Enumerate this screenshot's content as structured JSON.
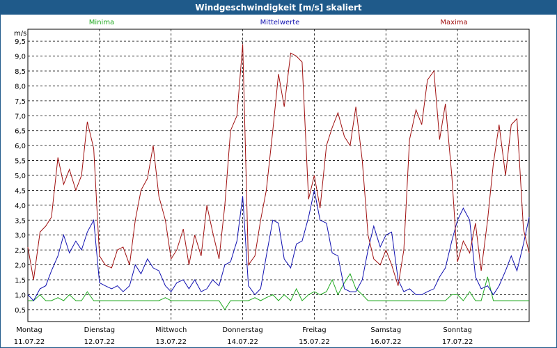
{
  "chart_data": {
    "type": "line",
    "title": "Windgeschwindigkeit [m/s] skaliert",
    "ylabel": "m/s",
    "ylim": [
      0.1,
      9.9
    ],
    "yticks": [
      "0,5",
      "1,0",
      "1,5",
      "2,0",
      "2,5",
      "3,0",
      "3,5",
      "4,0",
      "4,5",
      "5,0",
      "5,5",
      "6,0",
      "6,5",
      "7,0",
      "7,5",
      "8,0",
      "8,5",
      "9,0",
      "9,5"
    ],
    "ytick_values": [
      0.5,
      1.0,
      1.5,
      2.0,
      2.5,
      3.0,
      3.5,
      4.0,
      4.5,
      5.0,
      5.5,
      6.0,
      6.5,
      7.0,
      7.5,
      8.0,
      8.5,
      9.0,
      9.5
    ],
    "xlim": [
      0,
      7
    ],
    "days": [
      {
        "weekday": "Montag",
        "date": "11.07.22",
        "x": 0
      },
      {
        "weekday": "Dienstag",
        "date": "12.07.22",
        "x": 1
      },
      {
        "weekday": "Mittwoch",
        "date": "13.07.22",
        "x": 2
      },
      {
        "weekday": "Donnerstag",
        "date": "14.07.22",
        "x": 3
      },
      {
        "weekday": "Freitag",
        "date": "15.07.22",
        "x": 4
      },
      {
        "weekday": "Samstag",
        "date": "16.07.22",
        "x": 5
      },
      {
        "weekday": "Sonntag",
        "date": "17.07.22",
        "x": 6
      }
    ],
    "grid": true,
    "series": [
      {
        "name": "Minima",
        "color": "#22aa22",
        "x": [
          0.0,
          0.08,
          0.17,
          0.25,
          0.33,
          0.42,
          0.5,
          0.58,
          0.67,
          0.75,
          0.83,
          0.92,
          1.0,
          1.08,
          1.17,
          1.25,
          1.33,
          1.42,
          1.5,
          1.58,
          1.67,
          1.75,
          1.83,
          1.92,
          2.0,
          2.08,
          2.17,
          2.25,
          2.33,
          2.42,
          2.5,
          2.58,
          2.67,
          2.75,
          2.83,
          2.92,
          3.0,
          3.08,
          3.17,
          3.25,
          3.33,
          3.42,
          3.5,
          3.58,
          3.67,
          3.75,
          3.83,
          3.92,
          4.0,
          4.08,
          4.17,
          4.25,
          4.33,
          4.42,
          4.5,
          4.58,
          4.67,
          4.75,
          4.83,
          4.92,
          5.0,
          5.08,
          5.17,
          5.25,
          5.33,
          5.42,
          5.5,
          5.58,
          5.67,
          5.75,
          5.83,
          5.92,
          6.0,
          6.08,
          6.17,
          6.25,
          6.33,
          6.42,
          6.5,
          6.58,
          6.67,
          6.75,
          6.83,
          6.92,
          7.0
        ],
        "values": [
          0.8,
          0.8,
          1.0,
          0.8,
          0.8,
          0.9,
          0.8,
          1.0,
          0.8,
          0.8,
          1.1,
          0.8,
          0.8,
          0.8,
          0.8,
          0.8,
          0.8,
          0.8,
          0.8,
          0.8,
          0.8,
          0.8,
          0.8,
          0.9,
          0.8,
          0.8,
          0.8,
          0.8,
          0.8,
          0.8,
          0.8,
          0.8,
          0.8,
          0.5,
          0.8,
          0.8,
          0.8,
          0.8,
          0.9,
          0.8,
          0.9,
          1.0,
          0.8,
          1.0,
          0.8,
          1.2,
          0.8,
          1.0,
          1.1,
          1.0,
          1.1,
          1.5,
          1.0,
          1.4,
          1.7,
          1.2,
          1.0,
          0.8,
          0.8,
          0.8,
          0.8,
          0.8,
          0.8,
          0.8,
          0.8,
          0.8,
          0.8,
          0.8,
          0.8,
          0.8,
          0.8,
          1.0,
          1.0,
          0.8,
          1.1,
          0.8,
          0.8,
          1.6,
          0.8,
          0.8,
          0.8,
          0.8,
          0.8,
          0.8,
          0.8
        ],
        "label_pos": "left"
      },
      {
        "name": "Mittelwerte",
        "color": "#1010b0",
        "x": [
          0.0,
          0.08,
          0.17,
          0.25,
          0.33,
          0.42,
          0.5,
          0.58,
          0.67,
          0.75,
          0.83,
          0.92,
          1.0,
          1.08,
          1.17,
          1.25,
          1.33,
          1.42,
          1.5,
          1.58,
          1.67,
          1.75,
          1.83,
          1.92,
          2.0,
          2.08,
          2.17,
          2.25,
          2.33,
          2.42,
          2.5,
          2.58,
          2.67,
          2.75,
          2.83,
          2.92,
          3.0,
          3.08,
          3.17,
          3.25,
          3.33,
          3.42,
          3.5,
          3.58,
          3.67,
          3.75,
          3.83,
          3.92,
          4.0,
          4.08,
          4.17,
          4.25,
          4.33,
          4.42,
          4.5,
          4.58,
          4.67,
          4.75,
          4.83,
          4.92,
          5.0,
          5.08,
          5.17,
          5.25,
          5.33,
          5.42,
          5.5,
          5.58,
          5.67,
          5.75,
          5.83,
          5.92,
          6.0,
          6.08,
          6.17,
          6.25,
          6.33,
          6.42,
          6.5,
          6.58,
          6.67,
          6.75,
          6.83,
          6.92,
          7.0
        ],
        "values": [
          1.0,
          0.8,
          1.2,
          1.3,
          1.8,
          2.3,
          3.0,
          2.4,
          2.8,
          2.5,
          3.1,
          3.5,
          1.4,
          1.3,
          1.2,
          1.3,
          1.1,
          1.3,
          2.0,
          1.7,
          2.2,
          1.9,
          1.8,
          1.3,
          1.1,
          1.4,
          1.5,
          1.2,
          1.5,
          1.1,
          1.2,
          1.5,
          1.3,
          2.0,
          2.1,
          2.8,
          4.3,
          1.3,
          1.0,
          1.2,
          2.3,
          3.5,
          3.4,
          2.2,
          1.9,
          2.7,
          2.8,
          3.6,
          4.5,
          3.5,
          3.4,
          2.4,
          2.3,
          1.2,
          1.1,
          1.1,
          1.5,
          2.5,
          3.3,
          2.6,
          3.0,
          3.1,
          1.5,
          1.1,
          1.2,
          1.0,
          1.0,
          1.1,
          1.2,
          1.6,
          1.9,
          2.8,
          3.5,
          3.9,
          3.5,
          1.6,
          1.2,
          1.3,
          1.0,
          1.3,
          1.8,
          2.3,
          1.8,
          2.7,
          3.6
        ],
        "label_pos": "center"
      },
      {
        "name": "Maxima",
        "color": "#a01010",
        "x": [
          0.0,
          0.08,
          0.17,
          0.25,
          0.33,
          0.42,
          0.5,
          0.58,
          0.67,
          0.75,
          0.83,
          0.92,
          1.0,
          1.08,
          1.17,
          1.25,
          1.33,
          1.42,
          1.5,
          1.58,
          1.67,
          1.75,
          1.83,
          1.92,
          2.0,
          2.08,
          2.17,
          2.25,
          2.33,
          2.42,
          2.5,
          2.58,
          2.67,
          2.75,
          2.83,
          2.92,
          3.0,
          3.08,
          3.17,
          3.25,
          3.33,
          3.42,
          3.5,
          3.58,
          3.67,
          3.75,
          3.83,
          3.92,
          4.0,
          4.08,
          4.17,
          4.25,
          4.33,
          4.42,
          4.5,
          4.58,
          4.67,
          4.75,
          4.83,
          4.92,
          5.0,
          5.08,
          5.17,
          5.25,
          5.33,
          5.42,
          5.5,
          5.58,
          5.67,
          5.75,
          5.83,
          5.92,
          6.0,
          6.08,
          6.17,
          6.25,
          6.33,
          6.42,
          6.5,
          6.58,
          6.67,
          6.75,
          6.83,
          6.92,
          7.0
        ],
        "values": [
          2.6,
          1.5,
          3.1,
          3.3,
          3.6,
          5.6,
          4.7,
          5.2,
          4.5,
          5.0,
          6.8,
          5.9,
          2.3,
          2.0,
          1.9,
          2.5,
          2.6,
          2.0,
          3.5,
          4.5,
          4.9,
          6.0,
          4.3,
          3.5,
          2.2,
          2.5,
          3.2,
          2.0,
          3.0,
          2.3,
          4.0,
          3.1,
          2.2,
          4.0,
          6.5,
          7.0,
          9.4,
          2.0,
          2.3,
          3.5,
          4.5,
          6.5,
          8.4,
          7.3,
          9.1,
          9.0,
          8.8,
          4.2,
          5.0,
          3.9,
          6.0,
          6.6,
          7.1,
          6.3,
          6.0,
          7.3,
          5.5,
          3.0,
          2.2,
          2.0,
          2.5,
          2.0,
          1.3,
          2.5,
          6.2,
          7.2,
          6.7,
          8.2,
          8.5,
          6.2,
          7.4,
          5.0,
          2.1,
          2.8,
          2.4,
          3.4,
          1.8,
          3.5,
          5.4,
          6.7,
          5.0,
          6.7,
          6.9,
          3.2,
          2.4
        ],
        "label_pos": "right"
      }
    ]
  }
}
